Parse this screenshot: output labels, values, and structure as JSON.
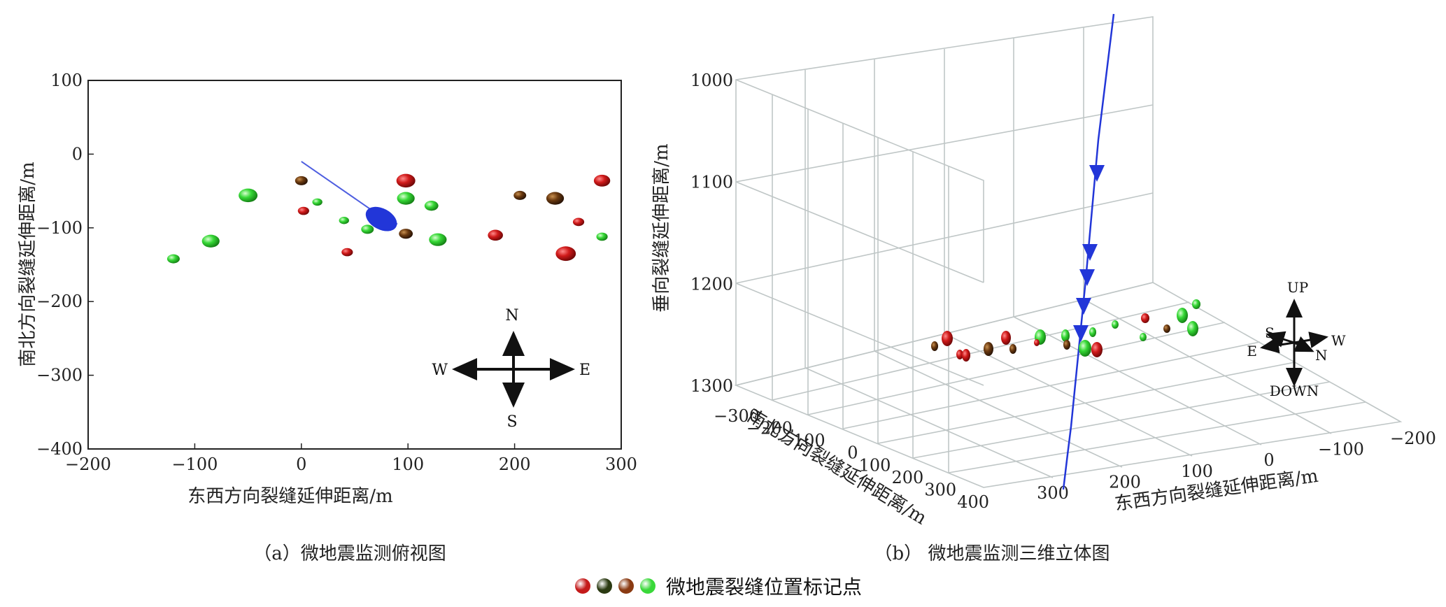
{
  "chart_data": [
    {
      "type": "scatter",
      "title": "",
      "caption": "（a）微地震监测俯视图",
      "xlabel": "东西方向裂缝延伸距离/m",
      "ylabel": "南北方向裂缝延伸距离/m",
      "xlim": [
        -200,
        300
      ],
      "ylim": [
        -400,
        100
      ],
      "xticks": [
        -200,
        -100,
        0,
        100,
        200,
        300
      ],
      "yticks": [
        100,
        0,
        -100,
        -200,
        -300,
        -400
      ],
      "xtick_labels": [
        "−200",
        "−100",
        "0",
        "100",
        "200",
        "300"
      ],
      "ytick_labels": [
        "100",
        "0",
        "−100",
        "−200",
        "−300",
        "−400"
      ],
      "grid": false,
      "well_path": [
        [
          0,
          -10
        ],
        [
          70,
          -80
        ],
        [
          90,
          -95
        ]
      ],
      "well_head": [
        75,
        -88
      ],
      "compass": {
        "north": "N",
        "south": "S",
        "east": "E",
        "west": "W"
      },
      "events": [
        {
          "x": -120,
          "y": -142,
          "color": "green",
          "size": 1.0
        },
        {
          "x": -85,
          "y": -118,
          "color": "green",
          "size": 1.4
        },
        {
          "x": -50,
          "y": -56,
          "color": "green",
          "size": 1.5
        },
        {
          "x": 0,
          "y": -36,
          "color": "brown",
          "size": 1.0
        },
        {
          "x": 2,
          "y": -77,
          "color": "red",
          "size": 0.9
        },
        {
          "x": 15,
          "y": -65,
          "color": "green",
          "size": 0.8
        },
        {
          "x": 40,
          "y": -90,
          "color": "green",
          "size": 0.8
        },
        {
          "x": 43,
          "y": -133,
          "color": "red",
          "size": 0.9
        },
        {
          "x": 62,
          "y": -102,
          "color": "green",
          "size": 1.0
        },
        {
          "x": 98,
          "y": -36,
          "color": "red",
          "size": 1.5
        },
        {
          "x": 98,
          "y": -60,
          "color": "green",
          "size": 1.4
        },
        {
          "x": 98,
          "y": -108,
          "color": "brown",
          "size": 1.1
        },
        {
          "x": 122,
          "y": -70,
          "color": "green",
          "size": 1.1
        },
        {
          "x": 128,
          "y": -116,
          "color": "green",
          "size": 1.4
        },
        {
          "x": 182,
          "y": -110,
          "color": "red",
          "size": 1.2
        },
        {
          "x": 205,
          "y": -56,
          "color": "brown",
          "size": 1.0
        },
        {
          "x": 238,
          "y": -60,
          "color": "brown",
          "size": 1.4
        },
        {
          "x": 260,
          "y": -92,
          "color": "red",
          "size": 0.9
        },
        {
          "x": 248,
          "y": -135,
          "color": "red",
          "size": 1.6
        },
        {
          "x": 282,
          "y": -36,
          "color": "red",
          "size": 1.3
        },
        {
          "x": 282,
          "y": -112,
          "color": "green",
          "size": 0.9
        }
      ]
    },
    {
      "type": "scatter3d",
      "title": "",
      "caption": "（b） 微地震监测三维立体图",
      "xlabel": "东西方向裂缝延伸距离/m",
      "ylabel": "南北方向裂缝延伸距离/m",
      "zlabel": "垂向裂缝延伸距离/m",
      "xlim": [
        -200,
        300
      ],
      "ylim": [
        -300,
        400
      ],
      "zlim": [
        1000,
        1300
      ],
      "xticks": [
        -200,
        -100,
        0,
        100,
        200,
        300
      ],
      "yticks": [
        -300,
        -200,
        -100,
        0,
        100,
        200,
        300,
        400
      ],
      "zticks": [
        1000,
        1100,
        1200,
        1300
      ],
      "xtick_labels": [
        "−200",
        "−100",
        "0",
        "100",
        "200",
        "300"
      ],
      "ytick_labels": [
        "−300",
        "−200",
        "−100",
        "0",
        "100",
        "200",
        "300",
        "400"
      ],
      "ztick_labels": [
        "1000",
        "1100",
        "1200",
        "1300"
      ],
      "grid": true,
      "compass": {
        "up": "UP",
        "down": "DOWN",
        "south": "S",
        "west": "W",
        "east": "E",
        "north": "N"
      }
    }
  ],
  "legend": {
    "colors": [
      "#c41a1a",
      "#2b3a12",
      "#8a3a12",
      "#3ad83a"
    ],
    "label": "微地震裂缝位置标记点"
  },
  "colors": {
    "red": "#c41a1a",
    "green": "#3ad83a",
    "brown": "#6b3a10",
    "well": "#2236d8",
    "grid": "#bfc6c6"
  }
}
